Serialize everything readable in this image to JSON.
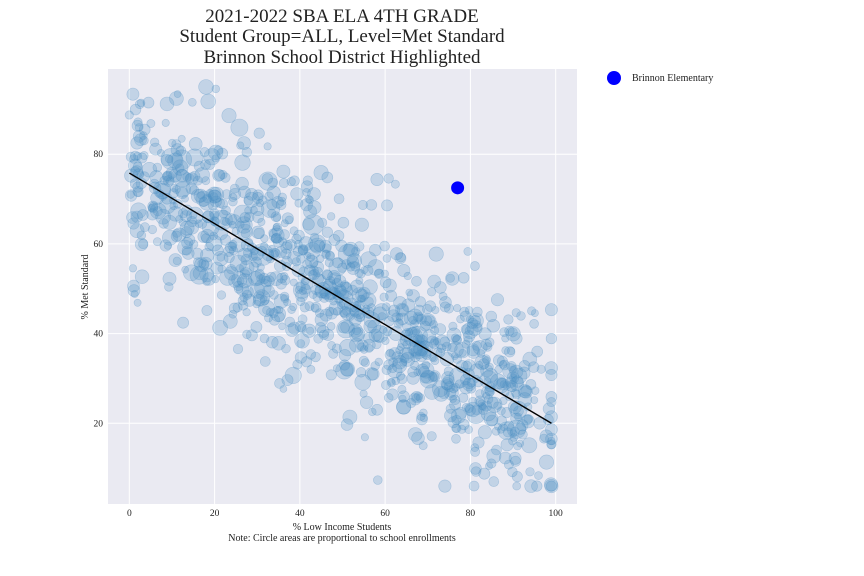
{
  "chart_data": {
    "type": "scatter",
    "title": [
      "2021-2022 SBA ELA 4TH GRADE",
      "Student Group=ALL, Level=Met Standard",
      "Brinnon School District Highlighted"
    ],
    "xlabel": "% Low Income Students",
    "ylabel": "% Met Standard",
    "note": "Note: Circle areas are proportional to school enrollments",
    "xlim": [
      -5,
      105
    ],
    "ylim": [
      2,
      99
    ],
    "xticks": [
      0,
      20,
      40,
      60,
      80,
      100
    ],
    "yticks": [
      20,
      40,
      60,
      80
    ],
    "grid": true,
    "legend_position": "right-outside-top",
    "colors": {
      "background": "#eaeaf2",
      "grid": "#ffffff",
      "points": "#4c8fc4",
      "highlight": "#0000ff",
      "trend_line": "#000000"
    },
    "trend_line": {
      "x": [
        0,
        99
      ],
      "y": [
        75.8,
        20.0
      ]
    },
    "highlight": {
      "name": "Brinnon Elementary",
      "x": 77,
      "y": 72.5
    },
    "scatter": {
      "count": 1100,
      "note": "approximate distribution of ~1100 schools, points follow trend with wide scatter"
    }
  }
}
